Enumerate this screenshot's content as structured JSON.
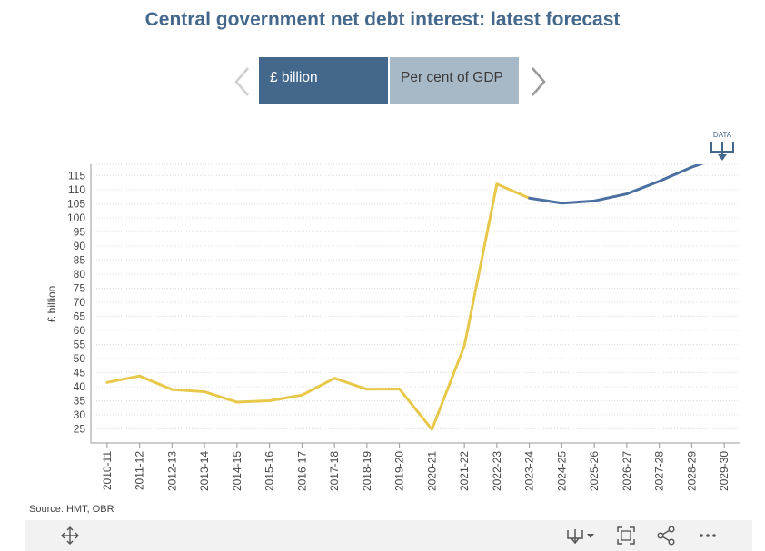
{
  "title": "Central government net debt interest: latest forecast",
  "tabs": [
    {
      "label": "£ billion",
      "active": true
    },
    {
      "label": "Per cent of GDP",
      "active": false
    }
  ],
  "data_button_label": "DATA",
  "source": "Source: HMT, OBR",
  "colors": {
    "title": "#44688c",
    "outturn": "#e8c84a",
    "forecast": "#4a6fa0",
    "active_tab": "#44688c",
    "inactive_tab": "#a7b8c7"
  },
  "toolbar_icons": [
    "move-icon",
    "download-icon",
    "focus-icon",
    "share-icon",
    "more-icon"
  ],
  "chart_data": {
    "type": "line",
    "title": "",
    "ylabel": "£ billion",
    "xlabel": "",
    "categories": [
      "2010-11",
      "2011-12",
      "2012-13",
      "2013-14",
      "2014-15",
      "2015-16",
      "2016-17",
      "2017-18",
      "2018-19",
      "2019-20",
      "2020-21",
      "2021-22",
      "2022-23",
      "2023-24",
      "2024-25",
      "2025-26",
      "2026-27",
      "2027-28",
      "2028-29",
      "2029-30"
    ],
    "ylim": [
      20,
      119
    ],
    "yticks": [
      25,
      30,
      35,
      40,
      45,
      50,
      55,
      60,
      65,
      70,
      75,
      80,
      85,
      90,
      95,
      100,
      105,
      110,
      115
    ],
    "grid": true,
    "series": [
      {
        "role": "outturn",
        "x": [
          "2010-11",
          "2011-12",
          "2012-13",
          "2013-14",
          "2014-15",
          "2015-16",
          "2016-17",
          "2017-18",
          "2018-19",
          "2019-20",
          "2020-21",
          "2021-22",
          "2022-23",
          "2023-24"
        ],
        "values": [
          41.5,
          43.8,
          39,
          38.2,
          34.5,
          35,
          37,
          43,
          39.1,
          39.2,
          24.8,
          54.5,
          112,
          107
        ],
        "color": "#e8c84a"
      },
      {
        "role": "forecast",
        "x": [
          "2023-24",
          "2024-25",
          "2025-26",
          "2026-27",
          "2027-28",
          "2028-29",
          "2029-30"
        ],
        "values": [
          107,
          105.2,
          106,
          108.5,
          113,
          118,
          122
        ],
        "color": "#4a6fa0"
      }
    ]
  }
}
